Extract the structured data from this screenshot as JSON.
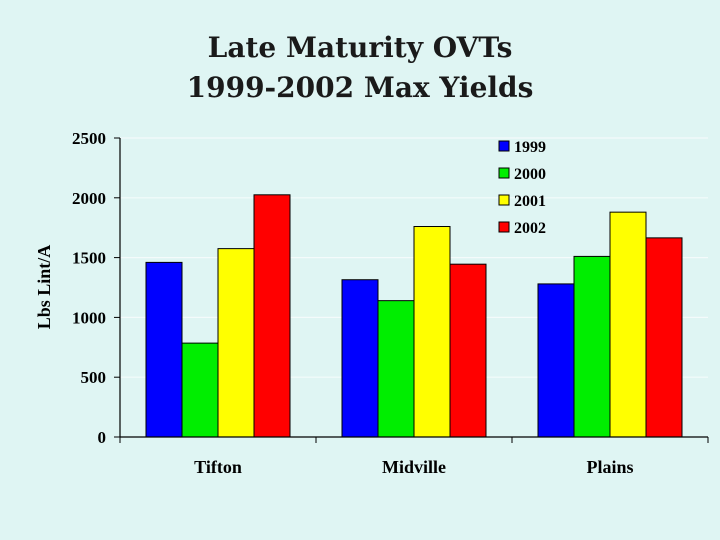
{
  "slide": {
    "title_line_1": "Late Maturity OVTs",
    "title_line_2": "1999-2002 Max Yields"
  },
  "chart_data": {
    "type": "bar",
    "title": "",
    "xlabel": "",
    "ylabel": "Lbs Lint/A",
    "ylim": [
      0,
      2500
    ],
    "yticks": [
      0,
      500,
      1000,
      1500,
      2000,
      2500
    ],
    "grid": true,
    "legend_position": "top-right",
    "categories": [
      "Tifton",
      "Midville",
      "Plains"
    ],
    "series": [
      {
        "name": "1999",
        "color": "#0000ff",
        "values": [
          1460,
          1315,
          1280
        ]
      },
      {
        "name": "2000",
        "color": "#00ee00",
        "values": [
          785,
          1140,
          1510
        ]
      },
      {
        "name": "2001",
        "color": "#ffff00",
        "values": [
          1575,
          1760,
          1880
        ]
      },
      {
        "name": "2002",
        "color": "#ff0000",
        "values": [
          2025,
          1445,
          1665
        ]
      }
    ]
  }
}
